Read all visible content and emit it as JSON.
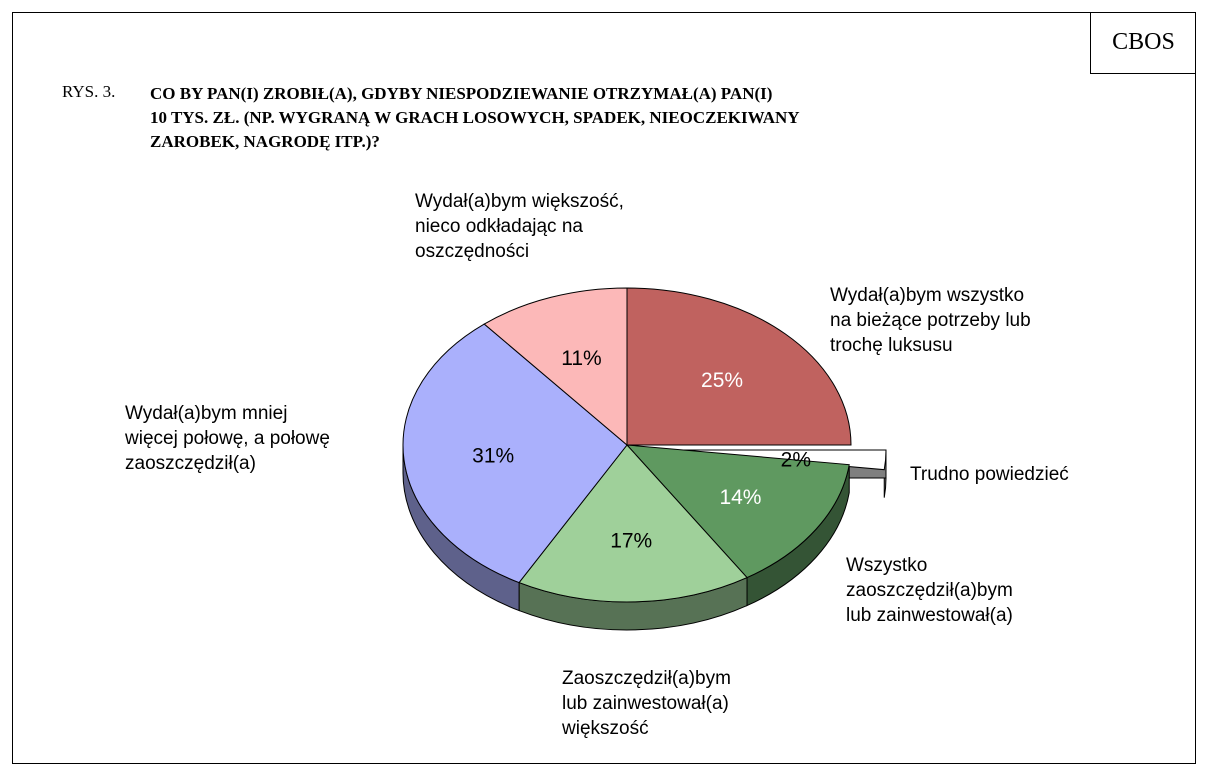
{
  "header": {
    "source": "CBOS",
    "figure": "RYS. 3."
  },
  "chart_data": {
    "type": "pie",
    "title": "CO BY PAN(I) ZROBIŁ(A), GDYBY NIESPODZIEWANIE OTRZYMAŁ(A) PAN(I)\n10 TYS. ZŁ. (NP. WYGRANĄ W GRACH LOSOWYCH, SPADEK, NIEOCZEKIWANY\nZAROBEK, NAGRODĘ ITP.)?",
    "categories": [
      "Wydał(a)bym wszystko\nna bieżące potrzeby lub\ntrochę luksusu",
      "Trudno powiedzieć",
      "Wszystko\nzaoszczędził(a)bym\nlub zainwestował(a)",
      "Zaoszczędził(a)bym\nlub zainwestował(a)\nwiększość",
      "Wydał(a)bym mniej\nwięcej połowę, a połowę\nzaoszczędził(a)",
      "Wydał(a)bym większość,\nnieco odkładając na\noszczędności"
    ],
    "values": [
      25,
      2,
      14,
      17,
      31,
      11
    ],
    "value_labels": [
      "25%",
      "2%",
      "14%",
      "17%",
      "31%",
      "11%"
    ],
    "colors": [
      "#c0625f",
      "#ffffff",
      "#5f9960",
      "#9fd09a",
      "#aab0fc",
      "#fcb8b8"
    ],
    "exploded": [
      1
    ]
  }
}
